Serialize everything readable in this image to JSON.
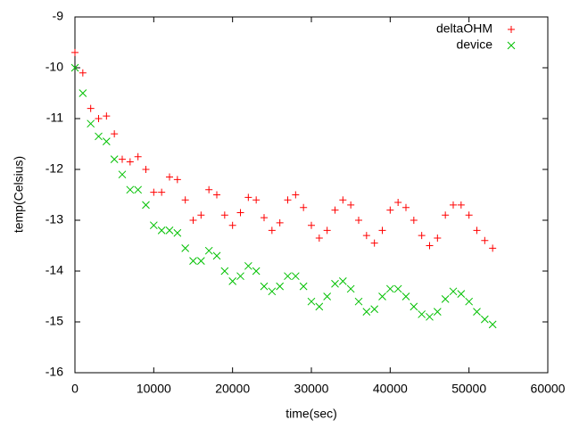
{
  "chart_data": {
    "type": "scatter",
    "xlabel": "time(sec)",
    "ylabel": "temp(Celsius)",
    "xlim": [
      0,
      60000
    ],
    "xticks": [
      0,
      10000,
      20000,
      30000,
      40000,
      50000,
      60000
    ],
    "ylim": [
      -16,
      -9
    ],
    "yticks": [
      -16,
      -15,
      -14,
      -13,
      -12,
      -11,
      -10,
      -9
    ],
    "grid": false,
    "legend": "top-right",
    "x": [
      0,
      1000,
      2000,
      3000,
      4000,
      5000,
      6000,
      7000,
      8000,
      9000,
      10000,
      11000,
      12000,
      13000,
      14000,
      15000,
      16000,
      17000,
      18000,
      19000,
      20000,
      21000,
      22000,
      23000,
      24000,
      25000,
      26000,
      27000,
      28000,
      29000,
      30000,
      31000,
      32000,
      33000,
      34000,
      35000,
      36000,
      37000,
      38000,
      39000,
      40000,
      41000,
      42000,
      43000,
      44000,
      45000,
      46000,
      47000,
      48000,
      49000,
      50000,
      51000,
      52000,
      53000
    ],
    "series": [
      {
        "name": "deltaOHM",
        "color": "#ff0000",
        "marker": "plus",
        "values": [
          -9.7,
          -10.1,
          -10.8,
          -11.0,
          -10.95,
          -11.3,
          -11.8,
          -11.85,
          -11.75,
          -12.0,
          -12.45,
          -12.45,
          -12.15,
          -12.2,
          -12.6,
          -13.0,
          -12.9,
          -12.4,
          -12.5,
          -12.9,
          -13.1,
          -12.85,
          -12.55,
          -12.6,
          -12.95,
          -13.2,
          -13.05,
          -12.6,
          -12.5,
          -12.75,
          -13.1,
          -13.35,
          -13.2,
          -12.8,
          -12.6,
          -12.7,
          -13.0,
          -13.3,
          -13.45,
          -13.2,
          -12.8,
          -12.65,
          -12.75,
          -13.0,
          -13.3,
          -13.5,
          -13.35,
          -12.9,
          -12.7,
          -12.7,
          -12.9,
          -13.2,
          -13.4,
          -13.55
        ]
      },
      {
        "name": "device",
        "color": "#00c000",
        "marker": "cross",
        "values": [
          -10.0,
          -10.5,
          -11.1,
          -11.35,
          -11.45,
          -11.8,
          -12.1,
          -12.4,
          -12.4,
          -12.7,
          -13.1,
          -13.2,
          -13.2,
          -13.25,
          -13.55,
          -13.8,
          -13.8,
          -13.6,
          -13.7,
          -14.0,
          -14.2,
          -14.1,
          -13.9,
          -14.0,
          -14.3,
          -14.4,
          -14.3,
          -14.1,
          -14.1,
          -14.3,
          -14.6,
          -14.7,
          -14.5,
          -14.25,
          -14.2,
          -14.35,
          -14.6,
          -14.8,
          -14.75,
          -14.5,
          -14.35,
          -14.35,
          -14.5,
          -14.7,
          -14.85,
          -14.9,
          -14.8,
          -14.55,
          -14.4,
          -14.45,
          -14.6,
          -14.8,
          -14.95,
          -15.05
        ]
      }
    ]
  }
}
